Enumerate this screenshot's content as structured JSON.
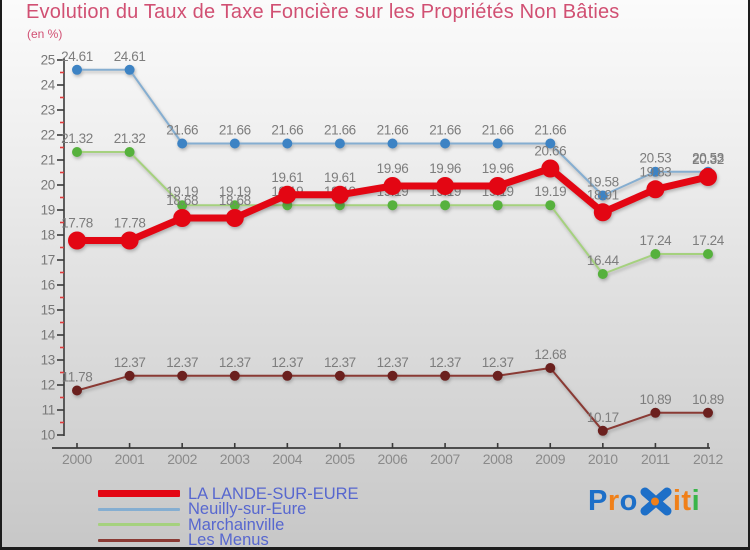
{
  "title": "Evolution du Taux de Taxe Foncière sur les Propriétés Non Bâties",
  "subtitle": "(en %)",
  "colors": {
    "title": "#d15073",
    "legend_text": "#5767cf",
    "axis": "#3a3a3a",
    "minor_tick": "#e03c3c",
    "data_label": "#7d7d7d",
    "year_label": "#8a8a8a"
  },
  "chart_data": {
    "type": "line",
    "title": "Evolution du Taux de Taxe Foncière sur les Propriétés Non Bâties",
    "subtitle": "(en %)",
    "x": [
      "2000",
      "2001",
      "2002",
      "2003",
      "2004",
      "2005",
      "2006",
      "2007",
      "2008",
      "2009",
      "2010",
      "2011",
      "2012"
    ],
    "ylim": [
      10,
      25
    ],
    "y_major_step": 1,
    "y_minor_step": 0.5,
    "grid": false,
    "legend_position": "bottom-left",
    "series": [
      {
        "name": "LA LANDE-SUR-EURE",
        "line_color": "#e30613",
        "dot_color": "#e30613",
        "line_width": 7,
        "dot_r": 9,
        "values": [
          17.78,
          17.78,
          18.68,
          18.68,
          19.61,
          19.61,
          19.96,
          19.96,
          19.96,
          20.66,
          18.91,
          19.83,
          20.32
        ]
      },
      {
        "name": "Neuilly-sur-Eure",
        "line_color": "#85aed1",
        "dot_color": "#3d83c4",
        "line_width": 2,
        "dot_r": 5,
        "values": [
          24.61,
          24.61,
          21.66,
          21.66,
          21.66,
          21.66,
          21.66,
          21.66,
          21.66,
          21.66,
          19.58,
          20.53,
          20.53
        ]
      },
      {
        "name": "Marchainville",
        "line_color": "#a5d17e",
        "dot_color": "#56b13d",
        "line_width": 2,
        "dot_r": 5,
        "values": [
          21.32,
          21.32,
          19.19,
          19.19,
          19.19,
          19.19,
          19.19,
          19.19,
          19.19,
          19.19,
          16.44,
          17.24,
          17.24
        ]
      },
      {
        "name": "Les Menus",
        "line_color": "#8a3a34",
        "dot_color": "#6b201e",
        "line_width": 2,
        "dot_r": 5,
        "values": [
          11.78,
          12.37,
          12.37,
          12.37,
          12.37,
          12.37,
          12.37,
          12.37,
          12.37,
          12.68,
          10.17,
          10.89,
          10.89
        ]
      }
    ]
  },
  "logo": {
    "text": "Proxiti",
    "letters": [
      {
        "ch": "P",
        "color": "#1d6fc8"
      },
      {
        "ch": "r",
        "color": "#f08019"
      },
      {
        "ch": "o",
        "color": "#1d6fc8"
      },
      {
        "ch": "x",
        "x_mark": true,
        "color": "#1d6fc8",
        "accent": "#f08019"
      },
      {
        "ch": "i",
        "color": "#f08019"
      },
      {
        "ch": "t",
        "color": "#f08019"
      },
      {
        "ch": "i",
        "color": "#3ab54a"
      }
    ]
  }
}
